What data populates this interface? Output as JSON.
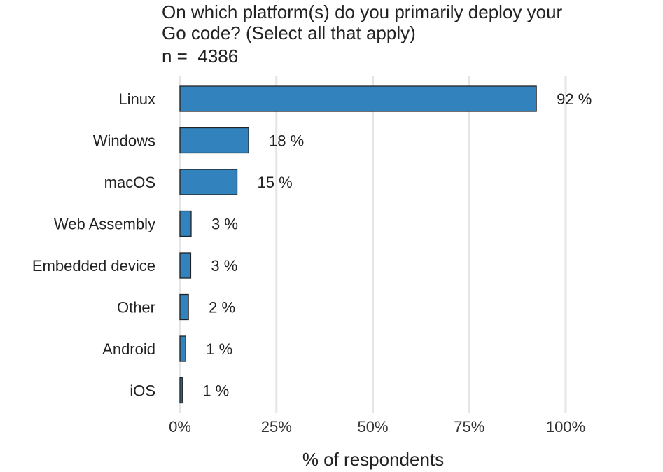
{
  "chart_data": {
    "type": "bar",
    "orientation": "horizontal",
    "title_lines": [
      "On which platform(s) do you primarily deploy your",
      "Go code? (Select all that apply)"
    ],
    "subtitle": "n =  4386",
    "categories": [
      "Linux",
      "Windows",
      "macOS",
      "Web Assembly",
      "Embedded device",
      "Other",
      "Android",
      "iOS"
    ],
    "values": [
      92,
      18,
      15,
      3,
      3,
      2,
      1,
      1
    ],
    "bar_values": [
      92.4,
      17.8,
      14.8,
      2.9,
      2.8,
      2.2,
      1.5,
      0.6
    ],
    "value_labels": [
      "92 %",
      "18 %",
      "15 %",
      "3 %",
      "3 %",
      "2 %",
      "1 %",
      "1 %"
    ],
    "xlim": [
      0,
      100
    ],
    "x_ticks": [
      0,
      25,
      50,
      75,
      100
    ],
    "x_tick_labels": [
      "0%",
      "25%",
      "50%",
      "75%",
      "100%"
    ],
    "xlabel": "% of respondents",
    "ylabel": "",
    "grid": true,
    "colors": {
      "bar_fill": "#3182bd",
      "bar_stroke": "#222222",
      "grid": "#e5e5e5",
      "text": "#222222"
    }
  }
}
